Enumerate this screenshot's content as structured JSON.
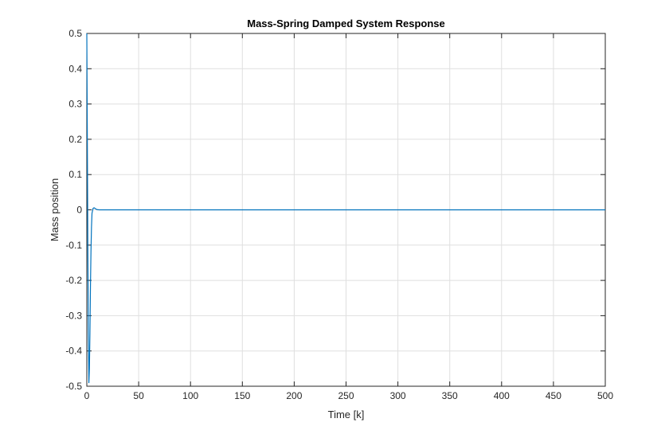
{
  "chart_data": {
    "type": "line",
    "title": "Mass-Spring Damped System Response",
    "xlabel": "Time [k]",
    "ylabel": "Mass position",
    "xlim": [
      0,
      500
    ],
    "ylim": [
      -0.5,
      0.5
    ],
    "xticks": [
      0,
      50,
      100,
      150,
      200,
      250,
      300,
      350,
      400,
      450,
      500
    ],
    "yticks": [
      -0.5,
      -0.4,
      -0.3,
      -0.2,
      -0.1,
      0,
      0.1,
      0.2,
      0.3,
      0.4,
      0.5
    ],
    "xtick_labels": [
      "0",
      "50",
      "100",
      "150",
      "200",
      "250",
      "300",
      "350",
      "400",
      "450",
      "500"
    ],
    "ytick_labels": [
      "-0.5",
      "-0.4",
      "-0.3",
      "-0.2",
      "-0.1",
      "0",
      "0.1",
      "0.2",
      "0.3",
      "0.4",
      "0.5"
    ],
    "grid": true,
    "series": [
      {
        "color": "#0072BD",
        "x": [
          0,
          0.5,
          1,
          1.5,
          2,
          2.5,
          3,
          3.5,
          4,
          4.5,
          5,
          6,
          7,
          8,
          9,
          10,
          12,
          15,
          20,
          30,
          50,
          100,
          200,
          300,
          400,
          500
        ],
        "y": [
          0.5,
          0.2,
          -0.1,
          -0.35,
          -0.49,
          -0.45,
          -0.35,
          -0.22,
          -0.12,
          -0.05,
          -0.01,
          0.004,
          0.006,
          0.004,
          0.002,
          0.0005,
          0,
          0,
          0,
          0,
          0,
          0,
          0,
          0,
          0,
          0
        ]
      }
    ]
  }
}
